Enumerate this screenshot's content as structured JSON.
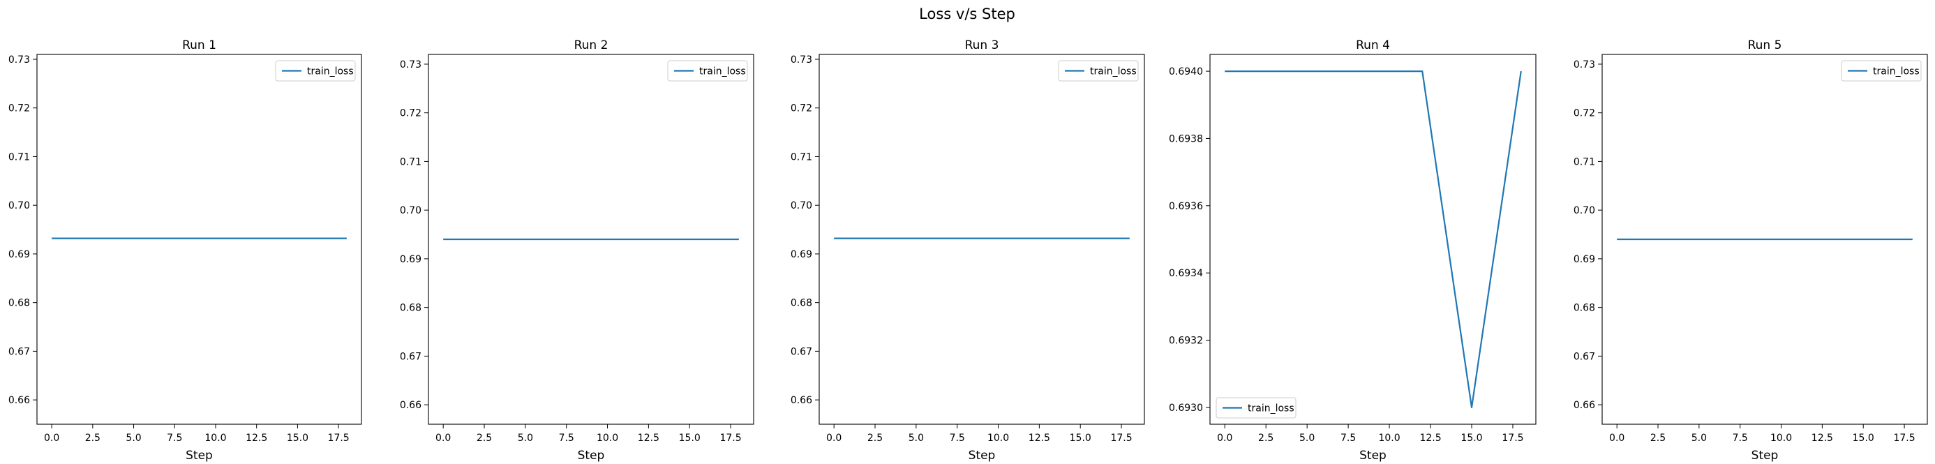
{
  "figure_title": "Loss v/s Step",
  "chart_data": [
    {
      "type": "line",
      "title": "Run 1",
      "xlabel": "Step",
      "ylabel": "",
      "legend": "top-right",
      "grid": false,
      "xlim": [
        -0.9,
        18.9
      ],
      "ylim": [
        0.655,
        0.731
      ],
      "xticks": [
        0,
        2.5,
        5,
        7.5,
        10,
        12.5,
        15,
        17.5
      ],
      "xtick_labels": [
        "0.0",
        "2.5",
        "5.0",
        "7.5",
        "10.0",
        "12.5",
        "15.0",
        "17.5"
      ],
      "yticks": [
        0.66,
        0.67,
        0.68,
        0.69,
        0.7,
        0.71,
        0.72,
        0.73
      ],
      "ytick_labels": [
        "0.66",
        "0.67",
        "0.68",
        "0.69",
        "0.70",
        "0.71",
        "0.72",
        "0.73"
      ],
      "series": [
        {
          "name": "train_loss",
          "color": "#1f77b4",
          "x": [
            0,
            3,
            6,
            9,
            12,
            15,
            18
          ],
          "y": [
            0.6932,
            0.6932,
            0.6932,
            0.6932,
            0.6932,
            0.6932,
            0.6932
          ]
        }
      ]
    },
    {
      "type": "line",
      "title": "Run 2",
      "xlabel": "Step",
      "ylabel": "",
      "legend": "top-right",
      "grid": false,
      "xlim": [
        -0.9,
        18.9
      ],
      "ylim": [
        0.656,
        0.732
      ],
      "xticks": [
        0,
        2.5,
        5,
        7.5,
        10,
        12.5,
        15,
        17.5
      ],
      "xtick_labels": [
        "0.0",
        "2.5",
        "5.0",
        "7.5",
        "10.0",
        "12.5",
        "15.0",
        "17.5"
      ],
      "yticks": [
        0.66,
        0.67,
        0.68,
        0.69,
        0.7,
        0.71,
        0.72,
        0.73
      ],
      "ytick_labels": [
        "0.66",
        "0.67",
        "0.68",
        "0.69",
        "0.70",
        "0.71",
        "0.72",
        "0.73"
      ],
      "series": [
        {
          "name": "train_loss",
          "color": "#1f77b4",
          "x": [
            0,
            3,
            6,
            9,
            12,
            15,
            18
          ],
          "y": [
            0.694,
            0.694,
            0.694,
            0.694,
            0.694,
            0.694,
            0.694
          ]
        }
      ]
    },
    {
      "type": "line",
      "title": "Run 3",
      "xlabel": "Step",
      "ylabel": "",
      "legend": "top-right",
      "grid": false,
      "xlim": [
        -0.9,
        18.9
      ],
      "ylim": [
        0.655,
        0.731
      ],
      "xticks": [
        0,
        2.5,
        5,
        7.5,
        10,
        12.5,
        15,
        17.5
      ],
      "xtick_labels": [
        "0.0",
        "2.5",
        "5.0",
        "7.5",
        "10.0",
        "12.5",
        "15.0",
        "17.5"
      ],
      "yticks": [
        0.66,
        0.67,
        0.68,
        0.69,
        0.7,
        0.71,
        0.72,
        0.73
      ],
      "ytick_labels": [
        "0.66",
        "0.67",
        "0.68",
        "0.69",
        "0.70",
        "0.71",
        "0.72",
        "0.73"
      ],
      "series": [
        {
          "name": "train_loss",
          "color": "#1f77b4",
          "x": [
            0,
            3,
            6,
            9,
            12,
            15,
            18
          ],
          "y": [
            0.6932,
            0.6932,
            0.6932,
            0.6932,
            0.6932,
            0.6932,
            0.6932
          ]
        }
      ]
    },
    {
      "type": "line",
      "title": "Run 4",
      "xlabel": "Step",
      "ylabel": "",
      "legend": "bottom-left",
      "grid": false,
      "xlim": [
        -0.9,
        18.9
      ],
      "ylim": [
        0.69295,
        0.69405
      ],
      "xticks": [
        0,
        2.5,
        5,
        7.5,
        10,
        12.5,
        15,
        17.5
      ],
      "xtick_labels": [
        "0.0",
        "2.5",
        "5.0",
        "7.5",
        "10.0",
        "12.5",
        "15.0",
        "17.5"
      ],
      "yticks": [
        0.693,
        0.6932,
        0.6934,
        0.6936,
        0.6938,
        0.694
      ],
      "ytick_labels": [
        "0.6930",
        "0.6932",
        "0.6934",
        "0.6936",
        "0.6938",
        "0.6940"
      ],
      "series": [
        {
          "name": "train_loss",
          "color": "#1f77b4",
          "x": [
            0,
            3,
            6,
            9,
            12,
            15,
            18
          ],
          "y": [
            0.694,
            0.694,
            0.694,
            0.694,
            0.694,
            0.693,
            0.694
          ]
        }
      ]
    },
    {
      "type": "line",
      "title": "Run 5",
      "xlabel": "Step",
      "ylabel": "",
      "legend": "top-right",
      "grid": false,
      "xlim": [
        -0.9,
        18.9
      ],
      "ylim": [
        0.656,
        0.732
      ],
      "xticks": [
        0,
        2.5,
        5,
        7.5,
        10,
        12.5,
        15,
        17.5
      ],
      "xtick_labels": [
        "0.0",
        "2.5",
        "5.0",
        "7.5",
        "10.0",
        "12.5",
        "15.0",
        "17.5"
      ],
      "yticks": [
        0.66,
        0.67,
        0.68,
        0.69,
        0.7,
        0.71,
        0.72,
        0.73
      ],
      "ytick_labels": [
        "0.66",
        "0.67",
        "0.68",
        "0.69",
        "0.70",
        "0.71",
        "0.72",
        "0.73"
      ],
      "series": [
        {
          "name": "train_loss",
          "color": "#1f77b4",
          "x": [
            0,
            3,
            6,
            9,
            12,
            15,
            18
          ],
          "y": [
            0.694,
            0.694,
            0.694,
            0.694,
            0.694,
            0.694,
            0.694
          ]
        }
      ]
    }
  ]
}
